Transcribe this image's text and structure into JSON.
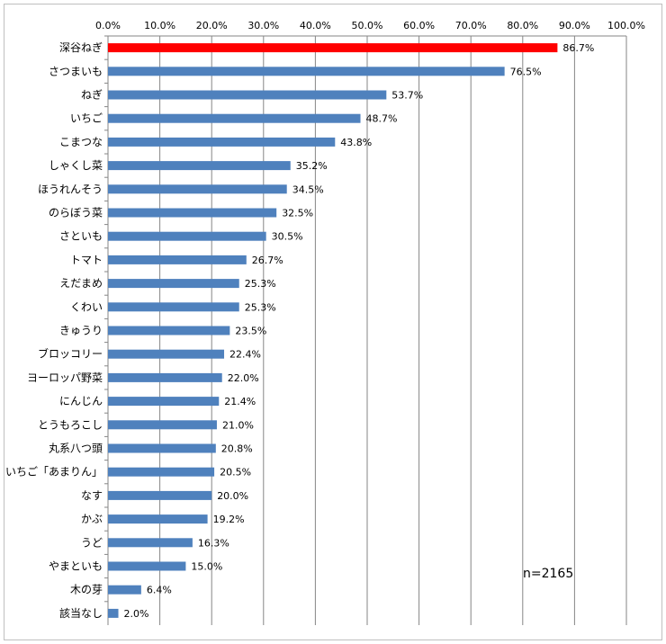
{
  "chart_data": {
    "type": "bar",
    "orientation": "horizontal",
    "categories": [
      "深谷ねぎ",
      "さつまいも",
      "ねぎ",
      "いちご",
      "こまつな",
      "しゃくし菜",
      "ほうれんそう",
      "のらぼう菜",
      "さといも",
      "トマト",
      "えだまめ",
      "くわい",
      "きゅうり",
      "ブロッコリー",
      "ヨーロッパ野菜",
      "にんじん",
      "とうもろこし",
      "丸系八つ頭",
      "いちご「あまりん」",
      "なす",
      "かぶ",
      "うど",
      "やまといも",
      "木の芽",
      "該当なし"
    ],
    "values": [
      86.7,
      76.5,
      53.7,
      48.7,
      43.8,
      35.2,
      34.5,
      32.5,
      30.5,
      26.7,
      25.3,
      25.3,
      23.5,
      22.4,
      22.0,
      21.4,
      21.0,
      20.8,
      20.5,
      20.0,
      19.2,
      16.3,
      15.0,
      6.4,
      2.0
    ],
    "value_labels": [
      "86.7%",
      "76.5%",
      "53.7%",
      "48.7%",
      "43.8%",
      "35.2%",
      "34.5%",
      "32.5%",
      "30.5%",
      "26.7%",
      "25.3%",
      "25.3%",
      "23.5%",
      "22.4%",
      "22.0%",
      "21.4%",
      "21.0%",
      "20.8%",
      "20.5%",
      "20.0%",
      "19.2%",
      "16.3%",
      "15.0%",
      "6.4%",
      "2.0%"
    ],
    "x_ticks": [
      0,
      10,
      20,
      30,
      40,
      50,
      60,
      70,
      80,
      90,
      100
    ],
    "x_tick_labels": [
      "0.0%",
      "10.0%",
      "20.0%",
      "30.0%",
      "40.0%",
      "50.0%",
      "60.0%",
      "70.0%",
      "80.0%",
      "90.0%",
      "100.0%"
    ],
    "xlim": [
      0,
      100
    ],
    "axis_position": "top",
    "grid": true,
    "highlight_index": 0,
    "colors": {
      "bar": "#4f81bd",
      "highlight": "#ff0000",
      "grid": "#868686"
    },
    "annotation": "n=2165"
  }
}
